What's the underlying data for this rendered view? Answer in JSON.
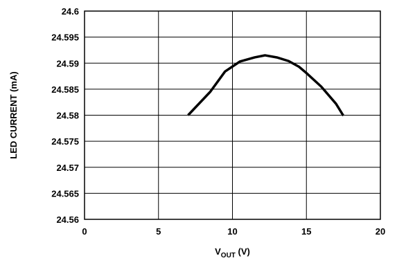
{
  "chart_data": {
    "type": "line",
    "title": "",
    "xlabel": {
      "main": "V",
      "subscript": "OUT",
      "suffix": " (V)"
    },
    "ylabel": "LED CURRENT (mA)",
    "xlim": [
      0,
      20
    ],
    "ylim": [
      24.56,
      24.6
    ],
    "xticks": [
      "0",
      "5",
      "10",
      "15",
      "20"
    ],
    "yticks": [
      "24.6",
      "24.595",
      "24.59",
      "24.585",
      "24.58",
      "24.575",
      "24.57",
      "24.565",
      "24.56"
    ],
    "grid": true,
    "series": [
      {
        "color": "#000000",
        "x": [
          7,
          8.5,
          9.5,
          10.5,
          11.5,
          12.2,
          13,
          13.8,
          14.5,
          15,
          16,
          17,
          17.5
        ],
        "y": [
          24.58,
          24.5845,
          24.5884,
          24.5903,
          24.5911,
          24.5915,
          24.5911,
          24.5904,
          24.5893,
          24.5881,
          24.5855,
          24.5822,
          24.5799
        ]
      }
    ]
  }
}
